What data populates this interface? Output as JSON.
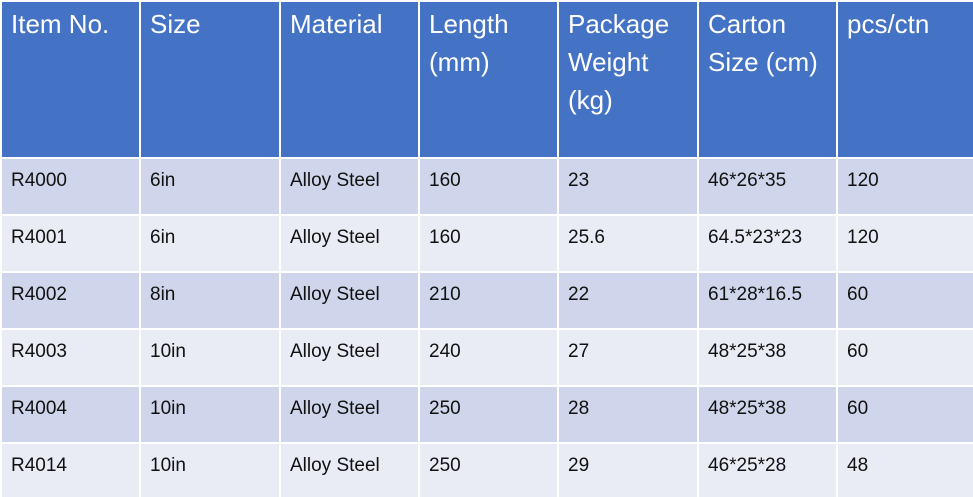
{
  "table": {
    "header": [
      "Item No.",
      "Size",
      "Material",
      "Length (mm)",
      "Package Weight (kg)",
      "Carton Size (cm)",
      "pcs/ctn"
    ],
    "rows": [
      [
        "R4000",
        "6in",
        "Alloy Steel",
        "160",
        "23",
        "46*26*35",
        "120"
      ],
      [
        "R4001",
        "6in",
        "Alloy Steel",
        "160",
        "25.6",
        "64.5*23*23",
        "120"
      ],
      [
        "R4002",
        "8in",
        "Alloy Steel",
        "210",
        "22",
        "61*28*16.5",
        "60"
      ],
      [
        "R4003",
        "10in",
        "Alloy Steel",
        "240",
        "27",
        "48*25*38",
        "60"
      ],
      [
        "R4004",
        "10in",
        "Alloy Steel",
        "250",
        "28",
        "48*25*38",
        "60"
      ],
      [
        "R4014",
        "10in",
        "Alloy Steel",
        "250",
        "29",
        "46*25*28",
        "48"
      ]
    ]
  }
}
